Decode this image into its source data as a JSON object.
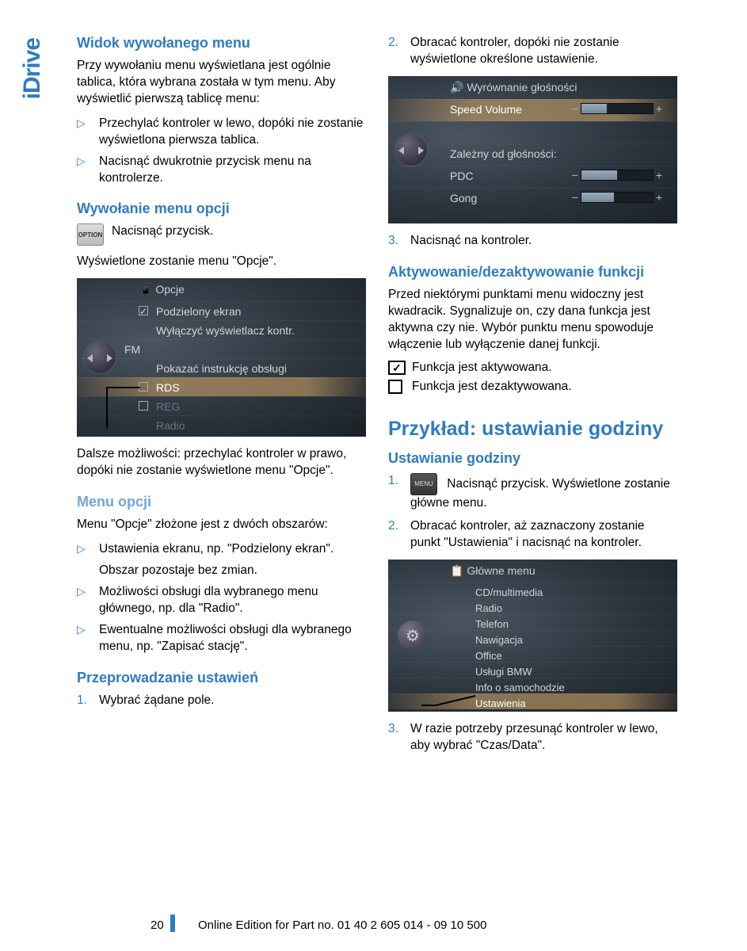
{
  "sidebar": {
    "label": "iDrive"
  },
  "colors": {
    "primary": "#2f7bc2",
    "secondary": "#6fa7d6"
  },
  "left": {
    "h1": "Widok wywołanego menu",
    "p1": "Przy wywołaniu menu wyświetlana jest ogólnie tablica, która wybrana została w tym menu. Aby wyświetlić pierwszą tablicę menu:",
    "bullets1": [
      "Przechylać kontroler w lewo, dopóki nie zostanie wyświetlona pierwsza tablica.",
      "Nacisnąć dwukrotnie przycisk menu na kontrolerze."
    ],
    "h2": "Wywołanie menu opcji",
    "option_btn_label": "OPTION",
    "option_btn_text": "Nacisnąć przycisk.",
    "p2": "Wyświetlone zostanie menu \"Opcje\".",
    "ss_opcje": {
      "title": "Opcje",
      "rows": [
        {
          "label": "Podzielony ekran",
          "checked": true
        },
        {
          "label": "Wyłączyć wyświetlacz kontr."
        },
        {
          "label": "FM",
          "left_indent": true
        },
        {
          "label": "Pokazać instrukcję obsługi"
        },
        {
          "label": "RDS",
          "checkbox": true,
          "selected": true
        },
        {
          "label": "REG",
          "checkbox": true,
          "dim": true
        },
        {
          "label": "Radio",
          "dim": true
        }
      ]
    },
    "p3": "Dalsze możliwości: przechylać kontroler w prawo, dopóki nie zostanie wyświetlone menu \"Opcje\".",
    "h3": "Menu opcji",
    "p4": "Menu \"Opcje\" złożone jest z dwóch obszarów:",
    "bullets2": [
      {
        "a": "Ustawienia ekranu, np. \"Podzielony ekran\".",
        "b": "Obszar pozostaje bez zmian."
      },
      {
        "a": "Możliwości obsługi dla wybranego menu głównego, np. dla \"Radio\"."
      },
      {
        "a": "Ewentualne możliwości obsługi dla wybranego menu, np. \"Zapisać stację\"."
      }
    ],
    "h4": "Przeprowadzanie ustawień",
    "num1": [
      {
        "n": "1.",
        "t": "Wybrać żądane pole."
      }
    ]
  },
  "right": {
    "num_top": [
      {
        "n": "2.",
        "t": "Obracać kontroler, dopóki nie zostanie wyświetlone określone ustawienie."
      }
    ],
    "ss_vol": {
      "title": "Wyrównanie głośności",
      "rows": [
        {
          "label": "Speed Volume",
          "selected": true,
          "fill": 0.35
        },
        {
          "label_only": true
        },
        {
          "label": "Zależny od głośności:",
          "header": true
        },
        {
          "label": "PDC",
          "fill": 0.5
        },
        {
          "label": "Gong",
          "fill": 0.45
        }
      ]
    },
    "num_after_vol": [
      {
        "n": "3.",
        "t": "Nacisnąć na kontroler."
      }
    ],
    "h5": "Aktywowanie/dezaktywowanie funkcji",
    "p5": "Przed niektórymi punktami menu widoczny jest kwadracik. Sygnalizuje on, czy dana funkcja jest aktywna czy nie. Wybór punktu menu spowoduje włączenie lub wyłączenie danej funkcji.",
    "func_on": "Funkcja jest aktywowana.",
    "func_off": "Funkcja jest dezaktywowana.",
    "h_big": "Przykład: ustawianie godziny",
    "h6": "Ustawianie godziny",
    "menu_btn_label": "MENU",
    "num_setup": [
      {
        "n": "1.",
        "t": "Nacisnąć przycisk. Wyświetlone zostanie główne menu.",
        "has_icon": true
      },
      {
        "n": "2.",
        "t": "Obracać kontroler, aż zaznaczony zostanie punkt \"Ustawienia\" i nacisnąć na kontroler."
      }
    ],
    "ss_menu": {
      "title": "Główne menu",
      "rows": [
        "CD/multimedia",
        "Radio",
        "Telefon",
        "Nawigacja",
        "Office",
        "Usługi BMW",
        "Info o samochodzie",
        "Ustawienia"
      ],
      "selected_index": 7
    },
    "num_last": [
      {
        "n": "3.",
        "t": "W razie potrzeby przesunąć kontroler w lewo, aby wybrać \"Czas/Data\"."
      }
    ]
  },
  "footer": {
    "page": "20",
    "text": "Online Edition for Part no. 01 40 2 605 014 - 09 10 500"
  }
}
